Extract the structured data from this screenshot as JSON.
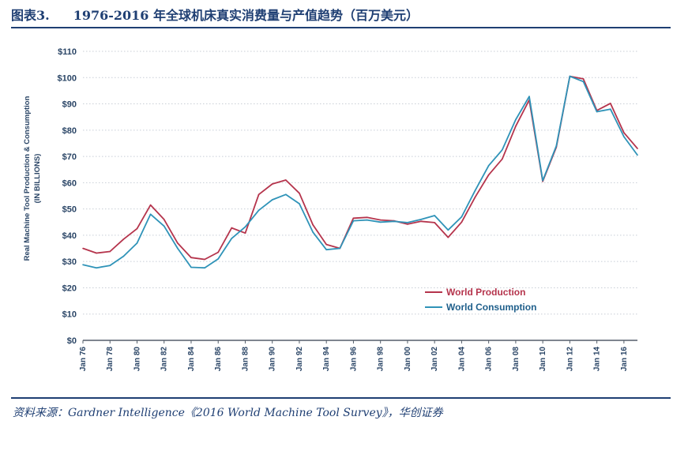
{
  "header": {
    "figure_label": "图表3.",
    "title": "1976-2016 年全球机床真实消费量与产值趋势（百万美元）"
  },
  "footer": {
    "source": "资料来源：Gardner Intelligence《2016 World Machine Tool Survey》，华创证券"
  },
  "colors": {
    "header_text": "#1f3f73",
    "production": "#b5344c",
    "consumption": "#2f93b8",
    "grid": "#c8ced6",
    "axis_text": "#2a4566"
  },
  "chart_data": {
    "type": "line",
    "ylabel_line1": "Real Machine Tool Production & Consumption",
    "ylabel_line2": "(IN BILLIONS)",
    "ylim": [
      0,
      110
    ],
    "y_ticks": [
      0,
      10,
      20,
      30,
      40,
      50,
      60,
      70,
      80,
      90,
      100,
      110
    ],
    "y_tick_labels": [
      "$0",
      "$10",
      "$20",
      "$30",
      "$40",
      "$50",
      "$60",
      "$70",
      "$80",
      "$90",
      "$100",
      "$110"
    ],
    "xlim": [
      1976,
      2017
    ],
    "x_ticks": [
      1976,
      1978,
      1980,
      1982,
      1984,
      1986,
      1988,
      1990,
      1992,
      1994,
      1996,
      1998,
      2000,
      2002,
      2004,
      2006,
      2008,
      2010,
      2012,
      2014,
      2016
    ],
    "x_tick_labels": [
      "Jan 76",
      "Jan 78",
      "Jan 80",
      "Jan 82",
      "Jan 84",
      "Jan 86",
      "Jan 88",
      "Jan 90",
      "Jan 92",
      "Jan 94",
      "Jan 96",
      "Jan 98",
      "Jan 00",
      "Jan 02",
      "Jan 04",
      "Jan 06",
      "Jan 08",
      "Jan 10",
      "Jan 12",
      "Jan 14",
      "Jan 16"
    ],
    "grid": true,
    "legend_position": "lower-right",
    "series": [
      {
        "name": "World Production",
        "color": "#b5344c",
        "points": [
          [
            1976,
            35
          ],
          [
            1977,
            33.2
          ],
          [
            1978,
            33.8
          ],
          [
            1979,
            38.5
          ],
          [
            1980,
            42.5
          ],
          [
            1981,
            51.5
          ],
          [
            1982,
            46
          ],
          [
            1983,
            37
          ],
          [
            1984,
            31.5
          ],
          [
            1985,
            30.8
          ],
          [
            1986,
            33.5
          ],
          [
            1987,
            42.8
          ],
          [
            1988,
            40.8
          ],
          [
            1989,
            55.5
          ],
          [
            1990,
            59.5
          ],
          [
            1991,
            61
          ],
          [
            1992,
            56
          ],
          [
            1993,
            44
          ],
          [
            1994,
            36.5
          ],
          [
            1995,
            35
          ],
          [
            1996,
            46.5
          ],
          [
            1997,
            46.8
          ],
          [
            1998,
            45.8
          ],
          [
            1999,
            45.5
          ],
          [
            2000,
            44.2
          ],
          [
            2001,
            45.3
          ],
          [
            2002,
            44.8
          ],
          [
            2003,
            39.2
          ],
          [
            2004,
            45
          ],
          [
            2005,
            54.5
          ],
          [
            2006,
            63
          ],
          [
            2007,
            69
          ],
          [
            2008,
            81.5
          ],
          [
            2009,
            91.5
          ],
          [
            2010,
            60.5
          ],
          [
            2011,
            73.5
          ],
          [
            2012,
            100.5
          ],
          [
            2013,
            99.5
          ],
          [
            2014,
            87.5
          ],
          [
            2015,
            90.2
          ],
          [
            2016,
            79
          ],
          [
            2017,
            73
          ]
        ]
      },
      {
        "name": "World Consumption",
        "color": "#2f93b8",
        "points": [
          [
            1976,
            28.8
          ],
          [
            1977,
            27.6
          ],
          [
            1978,
            28.5
          ],
          [
            1979,
            32
          ],
          [
            1980,
            37
          ],
          [
            1981,
            48
          ],
          [
            1982,
            43.5
          ],
          [
            1983,
            35
          ],
          [
            1984,
            27.8
          ],
          [
            1985,
            27.6
          ],
          [
            1986,
            31
          ],
          [
            1987,
            38.8
          ],
          [
            1988,
            43.2
          ],
          [
            1989,
            49.5
          ],
          [
            1990,
            53.5
          ],
          [
            1991,
            55.5
          ],
          [
            1992,
            52
          ],
          [
            1993,
            41.2
          ],
          [
            1994,
            34.5
          ],
          [
            1995,
            35
          ],
          [
            1996,
            45.5
          ],
          [
            1997,
            45.8
          ],
          [
            1998,
            45
          ],
          [
            1999,
            45.3
          ],
          [
            2000,
            44.8
          ],
          [
            2001,
            46
          ],
          [
            2002,
            47.5
          ],
          [
            2003,
            42
          ],
          [
            2004,
            47
          ],
          [
            2005,
            57
          ],
          [
            2006,
            66.5
          ],
          [
            2007,
            72.5
          ],
          [
            2008,
            84
          ],
          [
            2009,
            92.8
          ],
          [
            2010,
            60.8
          ],
          [
            2011,
            74
          ],
          [
            2012,
            100.5
          ],
          [
            2013,
            98.5
          ],
          [
            2014,
            87
          ],
          [
            2015,
            88
          ],
          [
            2016,
            77.5
          ],
          [
            2017,
            70.5
          ]
        ]
      }
    ]
  }
}
